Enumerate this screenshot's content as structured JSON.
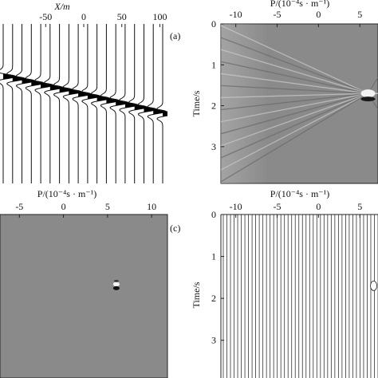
{
  "chart_data": [
    {
      "type": "seismic-wiggle",
      "panel_label": "(a)",
      "xlabel": "X/m",
      "x_ticks": [
        "-50",
        "0",
        "50",
        "100"
      ],
      "x_tick_values": [
        -50,
        0,
        50,
        100
      ],
      "xlim": [
        -110,
        110
      ],
      "ylim": [
        0,
        4
      ],
      "trace_count": 18,
      "event": {
        "t_at_xmin": 1.3,
        "t_at_xmax": 2.28
      }
    },
    {
      "type": "heatmap",
      "panel_label": "",
      "xlabel": "P/(10⁻⁴s · m⁻¹)",
      "ylabel": "Time/s",
      "x_ticks": [
        "-10",
        "-5",
        "0",
        "5"
      ],
      "x_tick_values": [
        -10,
        -5,
        0,
        5
      ],
      "y_ticks": [
        "0",
        "1",
        "2",
        "3"
      ],
      "y_tick_values": [
        0,
        1,
        2,
        3
      ],
      "xlim": [
        -11.8,
        7.2
      ],
      "ylim": [
        0,
        3.9
      ],
      "focus": {
        "p": 6.0,
        "t": 1.7
      },
      "fan_lines": 14
    },
    {
      "type": "heatmap",
      "panel_label": "(c)",
      "xlabel": "P/(10⁻⁴s · m⁻¹)",
      "x_ticks": [
        "-5",
        "0",
        "5",
        "10"
      ],
      "x_tick_values": [
        -5,
        0,
        5,
        10
      ],
      "xlim": [
        -7.2,
        11.8
      ],
      "ylim": [
        0,
        3.9
      ],
      "focus": {
        "p": 6.0,
        "t": 1.7
      }
    },
    {
      "type": "seismic-wiggle",
      "panel_label": "",
      "xlabel": "P/(10⁻⁴s · m⁻¹)",
      "ylabel": "Time/s",
      "x_ticks": [
        "-10",
        "-5",
        "0",
        "5"
      ],
      "x_tick_values": [
        -10,
        -5,
        0,
        5
      ],
      "y_ticks": [
        "0",
        "1",
        "2",
        "3"
      ],
      "y_tick_values": [
        0,
        1,
        2,
        3
      ],
      "xlim": [
        -11.8,
        7.2
      ],
      "ylim": [
        0,
        3.9
      ],
      "trace_count": 44,
      "focus": {
        "p": 6.0,
        "t": 1.7
      }
    }
  ]
}
